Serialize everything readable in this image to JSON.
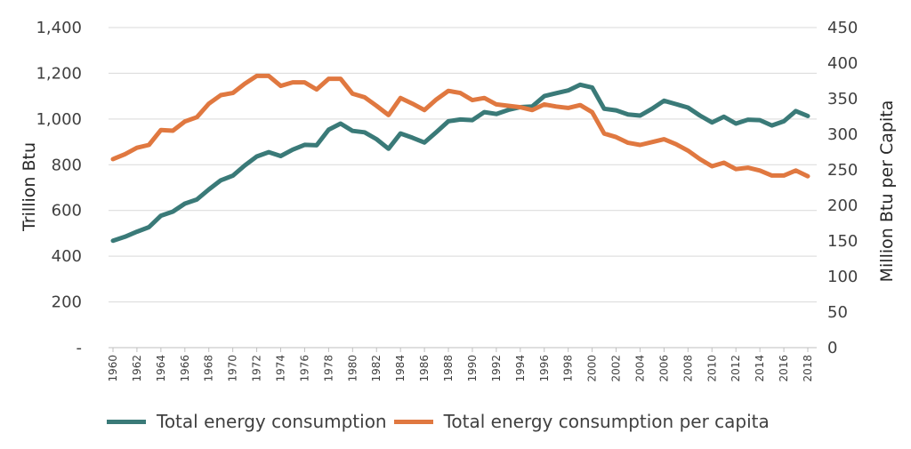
{
  "chart_data": {
    "type": "line",
    "xlabel": "",
    "ylabel_left": "Trillion Btu",
    "ylabel_right": "Million Btu per Capita",
    "ylim_left": [
      0,
      1400
    ],
    "ylim_right": [
      0,
      450
    ],
    "yticks_left": [
      "-",
      "200",
      "400",
      "600",
      "800",
      "1,000",
      "1,200",
      "1,400"
    ],
    "yticks_right": [
      "0",
      "50",
      "100",
      "150",
      "200",
      "250",
      "300",
      "350",
      "400",
      "450"
    ],
    "x": [
      1960,
      1961,
      1962,
      1963,
      1964,
      1965,
      1966,
      1967,
      1968,
      1969,
      1970,
      1971,
      1972,
      1973,
      1974,
      1975,
      1976,
      1977,
      1978,
      1979,
      1980,
      1981,
      1982,
      1983,
      1984,
      1985,
      1986,
      1987,
      1988,
      1989,
      1990,
      1991,
      1992,
      1993,
      1994,
      1995,
      1996,
      1997,
      1998,
      1999,
      2000,
      2001,
      2002,
      2003,
      2004,
      2005,
      2006,
      2007,
      2008,
      2009,
      2010,
      2011,
      2012,
      2013,
      2014,
      2015,
      2016,
      2017,
      2018
    ],
    "xticks": [
      "1960",
      "1962",
      "1964",
      "1966",
      "1968",
      "1970",
      "1972",
      "1974",
      "1976",
      "1978",
      "1980",
      "1982",
      "1984",
      "1986",
      "1988",
      "1990",
      "1992",
      "1994",
      "1996",
      "1998",
      "2000",
      "2002",
      "2004",
      "2006",
      "2008",
      "2010",
      "2012",
      "2014",
      "2016",
      "2018"
    ],
    "series": [
      {
        "name": "Total energy consumption",
        "axis": "left",
        "color": "#3a7a78",
        "values": [
          468,
          485,
          507,
          527,
          577,
          595,
          630,
          648,
          692,
          732,
          752,
          797,
          836,
          855,
          838,
          866,
          887,
          885,
          953,
          980,
          948,
          942,
          912,
          870,
          937,
          918,
          897,
          943,
          990,
          998,
          995,
          1030,
          1022,
          1040,
          1052,
          1055,
          1100,
          1113,
          1125,
          1150,
          1138,
          1045,
          1038,
          1020,
          1015,
          1045,
          1080,
          1065,
          1050,
          1015,
          985,
          1010,
          980,
          997,
          995,
          972,
          990,
          1035,
          1013
        ]
      },
      {
        "name": "Total energy consumption per capita",
        "axis": "right",
        "color": "#e07840",
        "values": [
          265,
          272,
          281,
          285,
          306,
          305,
          318,
          324,
          343,
          355,
          358,
          371,
          382,
          382,
          368,
          373,
          373,
          363,
          378,
          378,
          357,
          352,
          340,
          327,
          351,
          343,
          334,
          349,
          361,
          358,
          348,
          351,
          342,
          340,
          338,
          334,
          342,
          339,
          337,
          341,
          331,
          301,
          296,
          288,
          285,
          289,
          293,
          286,
          277,
          265,
          255,
          260,
          251,
          253,
          249,
          242,
          242,
          249,
          241
        ]
      }
    ],
    "legend_position": "bottom",
    "grid": true
  }
}
